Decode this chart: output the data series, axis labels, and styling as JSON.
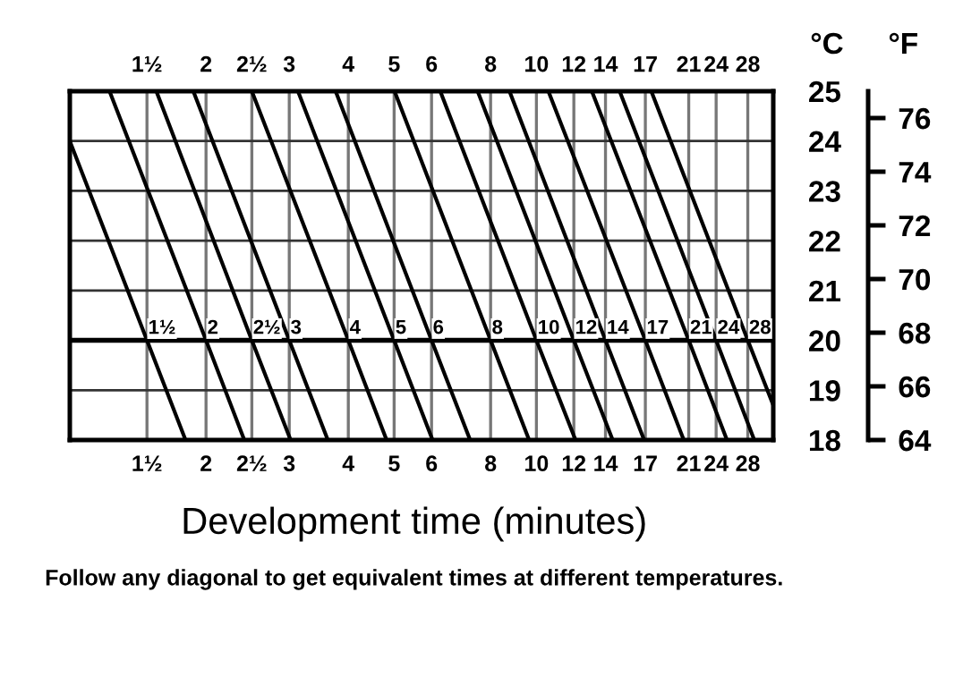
{
  "chart_data": {
    "type": "line",
    "xlabel": "Development time (minutes)",
    "ylabel": "°C",
    "y2label": "°F",
    "annotations": [
      "Follow any diagonal to get equivalent times at different temperatures."
    ],
    "log": "x",
    "xlim": [
      1.03,
      31.7
    ],
    "xticks": [
      {
        "value": 1.5,
        "label": "1½"
      },
      2,
      {
        "value": 2.5,
        "label": "2½"
      },
      3,
      4,
      5,
      6,
      8,
      10,
      12,
      14,
      17,
      21,
      24,
      28
    ],
    "ylim": [
      18,
      25
    ],
    "yticks": [
      18,
      19,
      20,
      21,
      22,
      23,
      24,
      25
    ],
    "y2lim": [
      64,
      77
    ],
    "y2ticks": [
      64,
      66,
      68,
      70,
      72,
      74,
      76
    ],
    "grid": true,
    "legend": false,
    "marker": "none",
    "line_style": "solid",
    "ref_lines": [
      {
        "axis": "y",
        "value": 20,
        "color": "#000000"
      }
    ],
    "series": [
      {
        "name": "1½",
        "color": "#000000",
        "x": [
          1.03,
          1.5,
          1.81
        ],
        "values": [
          24,
          20,
          18
        ]
      },
      {
        "name": "2",
        "color": "#000000",
        "x": [
          1.25,
          2,
          2.41
        ],
        "values": [
          25,
          20,
          18
        ]
      },
      {
        "name": "2½",
        "color": "#000000",
        "x": [
          1.57,
          2.5,
          3.02
        ],
        "values": [
          25,
          20,
          18
        ]
      },
      {
        "name": "3",
        "color": "#000000",
        "x": [
          1.88,
          3,
          3.62
        ],
        "values": [
          25,
          20,
          18
        ]
      },
      {
        "name": "4",
        "color": "#000000",
        "x": [
          2.5,
          4,
          4.82
        ],
        "values": [
          25,
          20,
          18
        ]
      },
      {
        "name": "5",
        "color": "#000000",
        "x": [
          3.13,
          5,
          6.03
        ],
        "values": [
          25,
          20,
          18
        ]
      },
      {
        "name": "6",
        "color": "#000000",
        "x": [
          3.76,
          6,
          7.24
        ],
        "values": [
          25,
          20,
          18
        ]
      },
      {
        "name": "8",
        "color": "#000000",
        "x": [
          5.01,
          8,
          9.65
        ],
        "values": [
          25,
          20,
          18
        ]
      },
      {
        "name": "10",
        "color": "#000000",
        "x": [
          6.26,
          10,
          12.1
        ],
        "values": [
          25,
          20,
          18
        ]
      },
      {
        "name": "12",
        "color": "#000000",
        "x": [
          7.51,
          12,
          14.5
        ],
        "values": [
          25,
          20,
          18
        ]
      },
      {
        "name": "14",
        "color": "#000000",
        "x": [
          8.77,
          14,
          16.9
        ],
        "values": [
          25,
          20,
          18
        ]
      },
      {
        "name": "17",
        "color": "#000000",
        "x": [
          10.6,
          17,
          20.5
        ],
        "values": [
          25,
          20,
          18
        ]
      },
      {
        "name": "21",
        "color": "#000000",
        "x": [
          13.1,
          21,
          25.3
        ],
        "values": [
          25,
          20,
          18
        ]
      },
      {
        "name": "24",
        "color": "#000000",
        "x": [
          15.0,
          24,
          28.9
        ],
        "values": [
          25,
          20,
          18
        ]
      },
      {
        "name": "28",
        "color": "#000000",
        "x": [
          17.5,
          28,
          31.7
        ],
        "values": [
          25,
          20,
          18.7
        ]
      }
    ]
  }
}
